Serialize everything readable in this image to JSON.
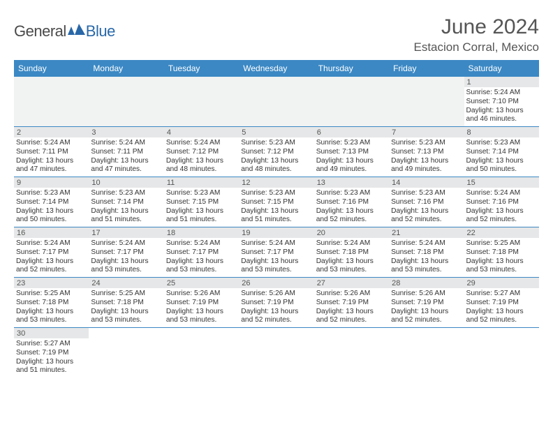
{
  "logo": {
    "gray": "General",
    "blue": "Blue"
  },
  "title": "June 2024",
  "location": "Estacion Corral, Mexico",
  "colors": {
    "header_bg": "#3b88c4",
    "daynum_bg": "#e6e7e8",
    "blank_bg": "#f1f2f2",
    "rule": "#3b88c4"
  },
  "days": [
    "Sunday",
    "Monday",
    "Tuesday",
    "Wednesday",
    "Thursday",
    "Friday",
    "Saturday"
  ],
  "grid": [
    [
      null,
      null,
      null,
      null,
      null,
      null,
      {
        "n": "1",
        "r": "5:24 AM",
        "s": "7:10 PM",
        "d": "13 hours and 46 minutes."
      }
    ],
    [
      {
        "n": "2",
        "r": "5:24 AM",
        "s": "7:11 PM",
        "d": "13 hours and 47 minutes."
      },
      {
        "n": "3",
        "r": "5:24 AM",
        "s": "7:11 PM",
        "d": "13 hours and 47 minutes."
      },
      {
        "n": "4",
        "r": "5:24 AM",
        "s": "7:12 PM",
        "d": "13 hours and 48 minutes."
      },
      {
        "n": "5",
        "r": "5:23 AM",
        "s": "7:12 PM",
        "d": "13 hours and 48 minutes."
      },
      {
        "n": "6",
        "r": "5:23 AM",
        "s": "7:13 PM",
        "d": "13 hours and 49 minutes."
      },
      {
        "n": "7",
        "r": "5:23 AM",
        "s": "7:13 PM",
        "d": "13 hours and 49 minutes."
      },
      {
        "n": "8",
        "r": "5:23 AM",
        "s": "7:14 PM",
        "d": "13 hours and 50 minutes."
      }
    ],
    [
      {
        "n": "9",
        "r": "5:23 AM",
        "s": "7:14 PM",
        "d": "13 hours and 50 minutes."
      },
      {
        "n": "10",
        "r": "5:23 AM",
        "s": "7:14 PM",
        "d": "13 hours and 51 minutes."
      },
      {
        "n": "11",
        "r": "5:23 AM",
        "s": "7:15 PM",
        "d": "13 hours and 51 minutes."
      },
      {
        "n": "12",
        "r": "5:23 AM",
        "s": "7:15 PM",
        "d": "13 hours and 51 minutes."
      },
      {
        "n": "13",
        "r": "5:23 AM",
        "s": "7:16 PM",
        "d": "13 hours and 52 minutes."
      },
      {
        "n": "14",
        "r": "5:23 AM",
        "s": "7:16 PM",
        "d": "13 hours and 52 minutes."
      },
      {
        "n": "15",
        "r": "5:24 AM",
        "s": "7:16 PM",
        "d": "13 hours and 52 minutes."
      }
    ],
    [
      {
        "n": "16",
        "r": "5:24 AM",
        "s": "7:17 PM",
        "d": "13 hours and 52 minutes."
      },
      {
        "n": "17",
        "r": "5:24 AM",
        "s": "7:17 PM",
        "d": "13 hours and 53 minutes."
      },
      {
        "n": "18",
        "r": "5:24 AM",
        "s": "7:17 PM",
        "d": "13 hours and 53 minutes."
      },
      {
        "n": "19",
        "r": "5:24 AM",
        "s": "7:17 PM",
        "d": "13 hours and 53 minutes."
      },
      {
        "n": "20",
        "r": "5:24 AM",
        "s": "7:18 PM",
        "d": "13 hours and 53 minutes."
      },
      {
        "n": "21",
        "r": "5:24 AM",
        "s": "7:18 PM",
        "d": "13 hours and 53 minutes."
      },
      {
        "n": "22",
        "r": "5:25 AM",
        "s": "7:18 PM",
        "d": "13 hours and 53 minutes."
      }
    ],
    [
      {
        "n": "23",
        "r": "5:25 AM",
        "s": "7:18 PM",
        "d": "13 hours and 53 minutes."
      },
      {
        "n": "24",
        "r": "5:25 AM",
        "s": "7:18 PM",
        "d": "13 hours and 53 minutes."
      },
      {
        "n": "25",
        "r": "5:26 AM",
        "s": "7:19 PM",
        "d": "13 hours and 53 minutes."
      },
      {
        "n": "26",
        "r": "5:26 AM",
        "s": "7:19 PM",
        "d": "13 hours and 52 minutes."
      },
      {
        "n": "27",
        "r": "5:26 AM",
        "s": "7:19 PM",
        "d": "13 hours and 52 minutes."
      },
      {
        "n": "28",
        "r": "5:26 AM",
        "s": "7:19 PM",
        "d": "13 hours and 52 minutes."
      },
      {
        "n": "29",
        "r": "5:27 AM",
        "s": "7:19 PM",
        "d": "13 hours and 52 minutes."
      }
    ],
    [
      {
        "n": "30",
        "r": "5:27 AM",
        "s": "7:19 PM",
        "d": "13 hours and 51 minutes."
      },
      null,
      null,
      null,
      null,
      null,
      null
    ]
  ],
  "labels": {
    "sunrise": "Sunrise: ",
    "sunset": "Sunset: ",
    "daylight": "Daylight: "
  }
}
